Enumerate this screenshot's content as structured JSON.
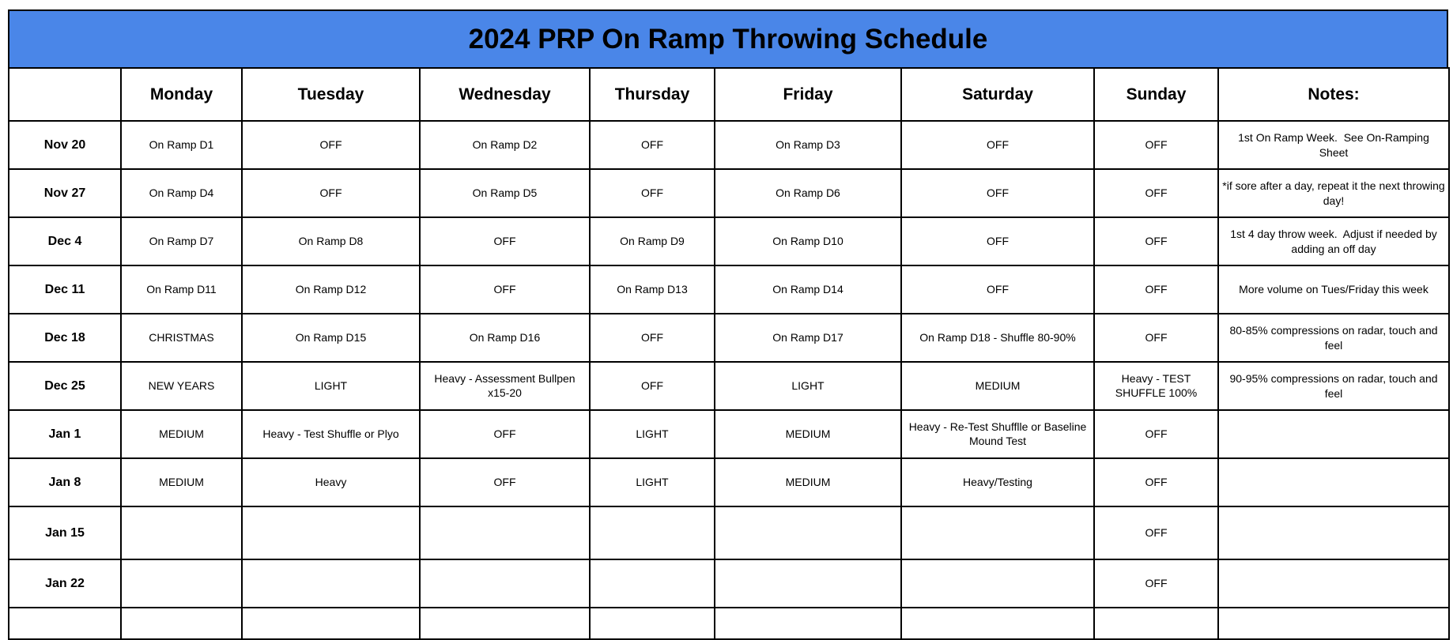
{
  "title": "2024 PRP On Ramp Throwing Schedule",
  "colors": {
    "title_blue": "#4a86e8",
    "green": "#00ff00",
    "yellow": "#ffff00",
    "red": "#ff0000",
    "holiday": "#dd7e6b",
    "border": "#000000",
    "text": "#000000"
  },
  "columns": [
    "",
    "Monday",
    "Tuesday",
    "Wednesday",
    "Thursday",
    "Friday",
    "Saturday",
    "Sunday",
    "Notes:"
  ],
  "rows": [
    {
      "date": "Nov 20",
      "cells": [
        {
          "text": "On Ramp D1",
          "bg": "green"
        },
        {
          "text": "OFF",
          "bg": "white"
        },
        {
          "text": "On Ramp D2",
          "bg": "green"
        },
        {
          "text": "OFF",
          "bg": "white"
        },
        {
          "text": "On Ramp D3",
          "bg": "green"
        },
        {
          "text": "OFF",
          "bg": "white"
        },
        {
          "text": "OFF",
          "bg": "white"
        }
      ],
      "note": "1st On Ramp Week.  See On-Ramping Sheet"
    },
    {
      "date": "Nov 27",
      "cells": [
        {
          "text": "On Ramp D4",
          "bg": "green"
        },
        {
          "text": "OFF",
          "bg": "white"
        },
        {
          "text": "On Ramp D5",
          "bg": "yellow"
        },
        {
          "text": "OFF",
          "bg": "white"
        },
        {
          "text": "On Ramp D6",
          "bg": "green"
        },
        {
          "text": "OFF",
          "bg": "white"
        },
        {
          "text": "OFF",
          "bg": "white"
        }
      ],
      "note": "*if sore after a day, repeat it the next throwing day!"
    },
    {
      "date": "Dec 4",
      "cells": [
        {
          "text": "On Ramp D7",
          "bg": "green"
        },
        {
          "text": "On Ramp D8",
          "bg": "yellow"
        },
        {
          "text": "OFF",
          "bg": "white"
        },
        {
          "text": "On Ramp D9",
          "bg": "green"
        },
        {
          "text": "On Ramp D10",
          "bg": "yellow"
        },
        {
          "text": "OFF",
          "bg": "white"
        },
        {
          "text": "OFF",
          "bg": "white"
        }
      ],
      "note": "1st 4 day throw week.  Adjust if needed by adding an off day"
    },
    {
      "date": "Dec 11",
      "cells": [
        {
          "text": "On Ramp D11",
          "bg": "green"
        },
        {
          "text": "On Ramp D12",
          "bg": "yellow"
        },
        {
          "text": "OFF",
          "bg": "white"
        },
        {
          "text": "On Ramp D13",
          "bg": "green"
        },
        {
          "text": "On Ramp D14",
          "bg": "yellow"
        },
        {
          "text": "OFF",
          "bg": "white"
        },
        {
          "text": "OFF",
          "bg": "white"
        }
      ],
      "note": "More volume on Tues/Friday this week"
    },
    {
      "date": "Dec 18",
      "cells": [
        {
          "text": "CHRISTMAS",
          "bg": "holiday"
        },
        {
          "text": "On Ramp D15",
          "bg": "green"
        },
        {
          "text": "On Ramp D16",
          "bg": "red"
        },
        {
          "text": "OFF",
          "bg": "white"
        },
        {
          "text": "On Ramp D17",
          "bg": "green"
        },
        {
          "text": "On Ramp D18 - Shuffle 80-90%",
          "bg": "red"
        },
        {
          "text": "OFF",
          "bg": "white"
        }
      ],
      "note": "80-85% compressions on radar, touch and feel"
    },
    {
      "date": "Dec 25",
      "cells": [
        {
          "text": "NEW YEARS",
          "bg": "holiday"
        },
        {
          "text": "LIGHT",
          "bg": "green"
        },
        {
          "text": "Heavy - Assessment Bullpen x15-20",
          "bg": "red"
        },
        {
          "text": "OFF",
          "bg": "white"
        },
        {
          "text": "LIGHT",
          "bg": "green"
        },
        {
          "text": "MEDIUM",
          "bg": "yellow"
        },
        {
          "text": "Heavy - TEST SHUFFLE 100%",
          "bg": "red"
        }
      ],
      "note": "90-95% compressions on radar, touch and feel"
    },
    {
      "date": "Jan 1",
      "cells": [
        {
          "text": "MEDIUM",
          "bg": "yellow"
        },
        {
          "text": "Heavy - Test Shuffle or Plyo",
          "bg": "red"
        },
        {
          "text": "OFF",
          "bg": "white"
        },
        {
          "text": "LIGHT",
          "bg": "green"
        },
        {
          "text": "MEDIUM",
          "bg": "yellow"
        },
        {
          "text": "Heavy - Re-Test Shufflle or Baseline Mound Test",
          "bg": "red"
        },
        {
          "text": "OFF",
          "bg": "white"
        }
      ],
      "note": ""
    },
    {
      "date": "Jan 8",
      "cells": [
        {
          "text": "MEDIUM",
          "bg": "yellow"
        },
        {
          "text": "Heavy",
          "bg": "red"
        },
        {
          "text": "OFF",
          "bg": "white"
        },
        {
          "text": "LIGHT",
          "bg": "green"
        },
        {
          "text": "MEDIUM",
          "bg": "yellow"
        },
        {
          "text": "Heavy/Testing",
          "bg": "red"
        },
        {
          "text": "OFF",
          "bg": "white"
        }
      ],
      "note": ""
    },
    {
      "date": "Jan 15",
      "tall": true,
      "cells": [
        {
          "text": "",
          "bg": "white"
        },
        {
          "text": "",
          "bg": "white"
        },
        {
          "text": "",
          "bg": "white"
        },
        {
          "text": "",
          "bg": "white"
        },
        {
          "text": "",
          "bg": "white"
        },
        {
          "text": "",
          "bg": "white"
        },
        {
          "text": "OFF",
          "bg": "white"
        }
      ],
      "note": ""
    },
    {
      "date": "Jan 22",
      "cells": [
        {
          "text": "",
          "bg": "white"
        },
        {
          "text": "",
          "bg": "white"
        },
        {
          "text": "",
          "bg": "white"
        },
        {
          "text": "",
          "bg": "white"
        },
        {
          "text": "",
          "bg": "white"
        },
        {
          "text": "",
          "bg": "white"
        },
        {
          "text": "OFF",
          "bg": "white"
        }
      ],
      "note": ""
    },
    {
      "date": "",
      "partial": true,
      "cells": [
        {
          "text": "",
          "bg": "white"
        },
        {
          "text": "",
          "bg": "white"
        },
        {
          "text": "",
          "bg": "white"
        },
        {
          "text": "",
          "bg": "white"
        },
        {
          "text": "",
          "bg": "white"
        },
        {
          "text": "",
          "bg": "white"
        },
        {
          "text": "",
          "bg": "white"
        }
      ],
      "note": ""
    }
  ]
}
